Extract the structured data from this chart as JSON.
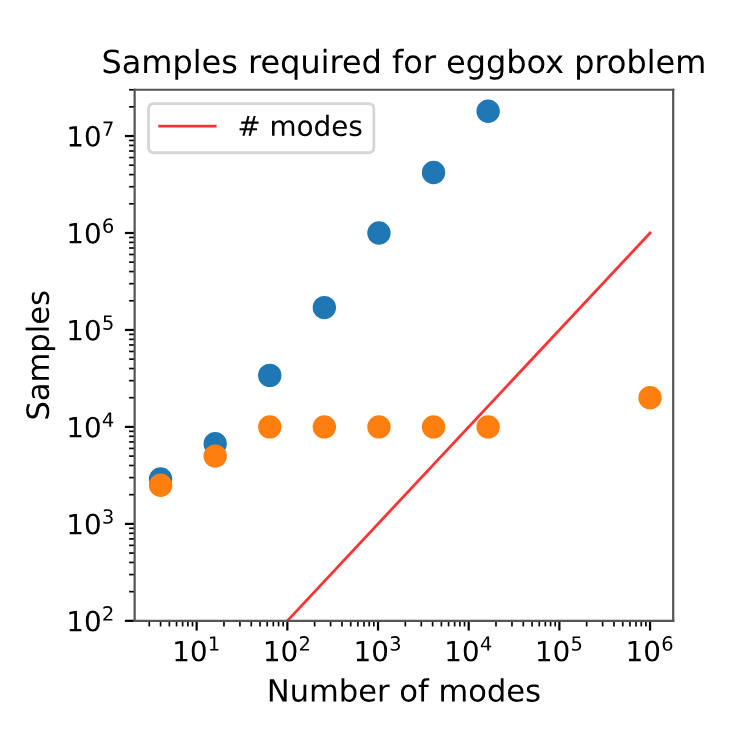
{
  "chart_data": {
    "type": "scatter",
    "title": "Samples required for eggbox problem",
    "xlabel": "Number of modes",
    "ylabel": "Samples",
    "log": "xy",
    "xlim": [
      2.07,
      1800000.0
    ],
    "ylim": [
      100,
      30000000.0
    ],
    "xticks": [
      {
        "value": 10,
        "label": "10$^{1}$"
      },
      {
        "value": 100,
        "label": "10$^{2}$"
      },
      {
        "value": 1000,
        "label": "10$^{3}$"
      },
      {
        "value": 10000,
        "label": "10$^{4}$"
      },
      {
        "value": 100000,
        "label": "10$^{5}$"
      },
      {
        "value": 1000000,
        "label": "10$^{6}$"
      }
    ],
    "yticks": [
      {
        "value": 100,
        "label": "10$^{2}$"
      },
      {
        "value": 1000,
        "label": "10$^{3}$"
      },
      {
        "value": 10000,
        "label": "10$^{4}$"
      },
      {
        "value": 100000,
        "label": "10$^{5}$"
      },
      {
        "value": 1000000,
        "label": "10$^{6}$"
      },
      {
        "value": 10000000,
        "label": "10$^{7}$"
      }
    ],
    "legend": "top left",
    "grid": false,
    "series": [
      {
        "name": "# modes",
        "type": "line",
        "color": "#ff3333",
        "x": [
          100,
          1000000
        ],
        "values": [
          100,
          1000000
        ]
      },
      {
        "marker": "circle",
        "color": "#1f77b4",
        "x": [
          4,
          16,
          64,
          256,
          1024,
          4096,
          16384
        ],
        "values": [
          2900,
          6700,
          34000,
          170000,
          1000000,
          4200000,
          18000000
        ]
      },
      {
        "marker": "circle",
        "color": "#ff7f0e",
        "x": [
          4,
          16,
          64,
          256,
          1024,
          4096,
          16384,
          1000000
        ],
        "values": [
          2500,
          5000,
          10000,
          10000,
          10000,
          10000,
          10000,
          20000
        ]
      }
    ]
  }
}
